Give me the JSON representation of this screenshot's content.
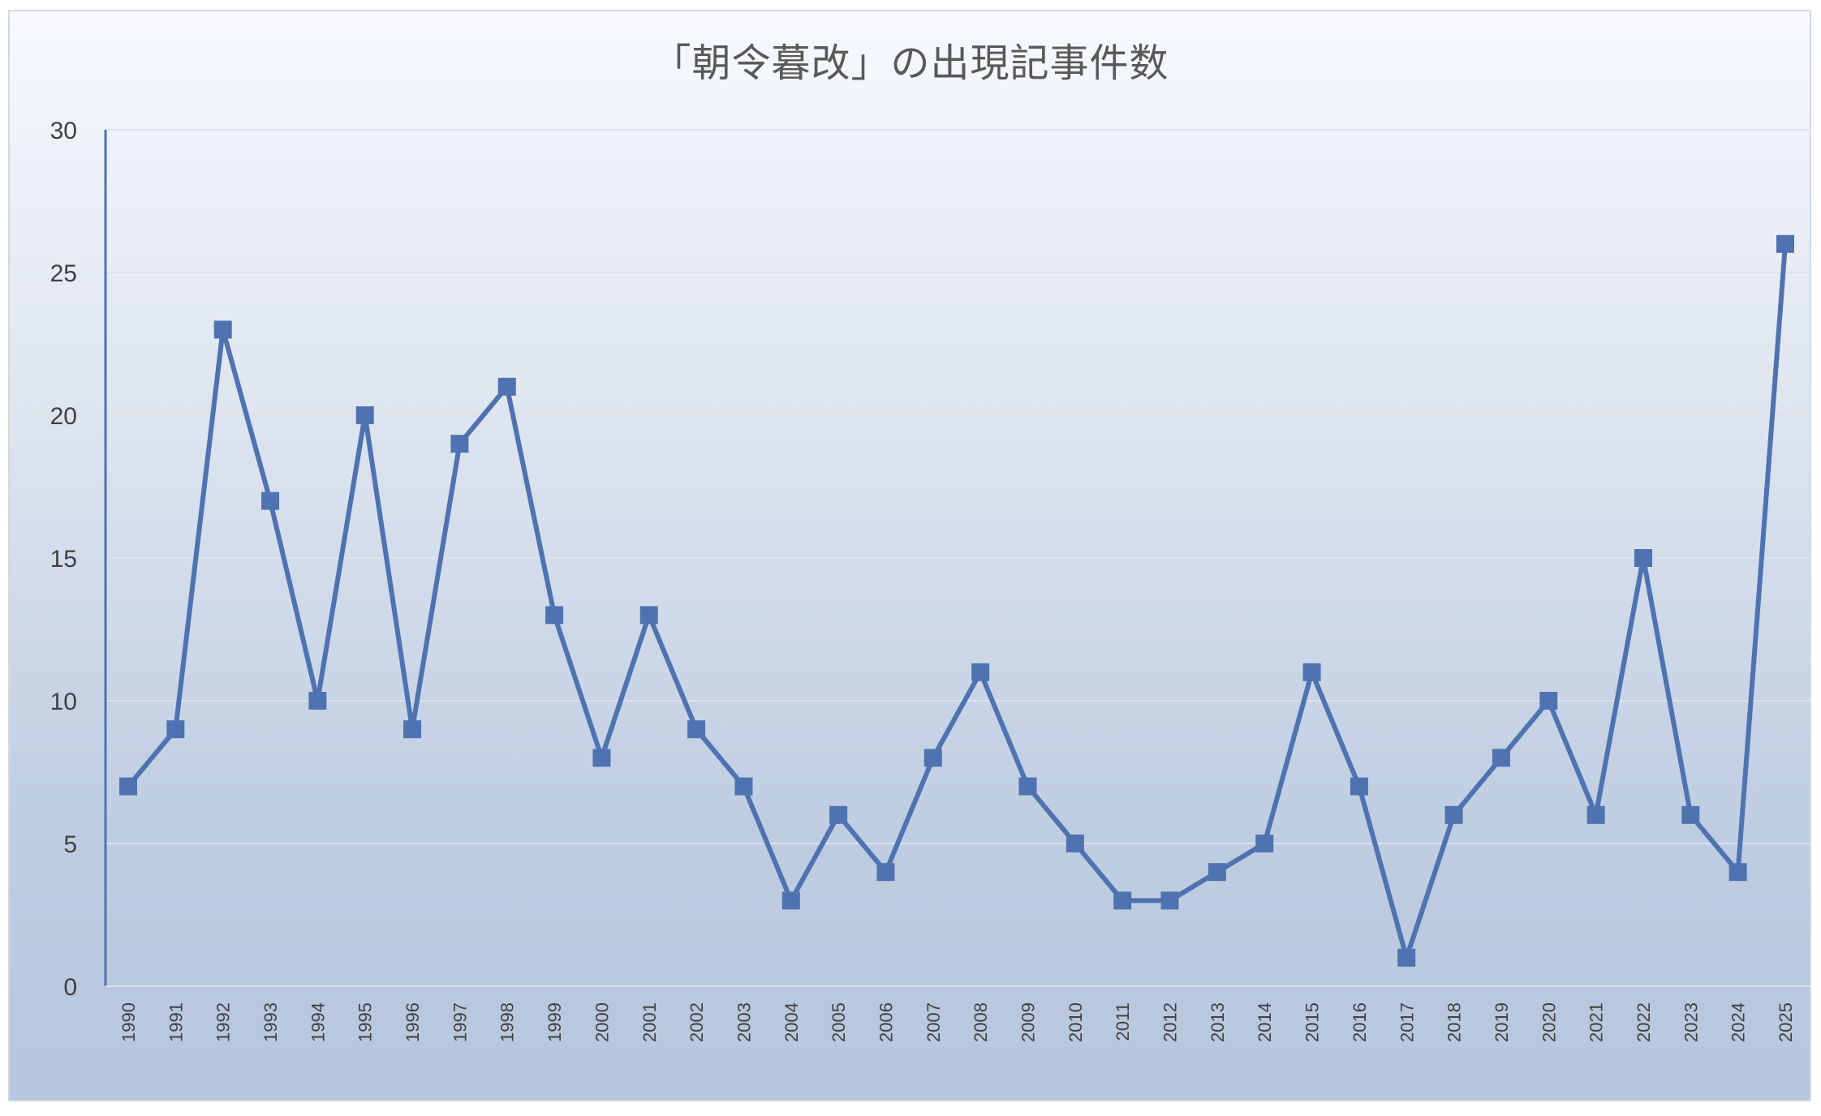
{
  "chart_data": {
    "type": "line",
    "title": "「朝令暮改」の出現記事件数",
    "xlabel": "",
    "ylabel": "",
    "ylim": [
      0,
      30
    ],
    "yticks": [
      0,
      5,
      10,
      15,
      20,
      25,
      30
    ],
    "grid": true,
    "legend": "none",
    "colors": {
      "series": "#4f72b0",
      "grid": "#dde2ea",
      "axis": "#4f72b0"
    },
    "categories": [
      "1990",
      "1991",
      "1992",
      "1993",
      "1994",
      "1995",
      "1996",
      "1997",
      "1998",
      "1999",
      "2000",
      "2001",
      "2002",
      "2003",
      "2004",
      "2005",
      "2006",
      "2007",
      "2008",
      "2009",
      "2010",
      "2011",
      "2012",
      "2013",
      "2014",
      "2015",
      "2016",
      "2017",
      "2018",
      "2019",
      "2020",
      "2021",
      "2022",
      "2023",
      "2024",
      "2025"
    ],
    "series": [
      {
        "values": [
          7,
          9,
          23,
          17,
          10,
          20,
          9,
          19,
          21,
          13,
          8,
          13,
          9,
          7,
          3,
          6,
          4,
          8,
          11,
          7,
          5,
          3,
          3,
          4,
          5,
          11,
          7,
          1,
          6,
          8,
          10,
          6,
          15,
          6,
          4,
          26
        ]
      }
    ]
  }
}
